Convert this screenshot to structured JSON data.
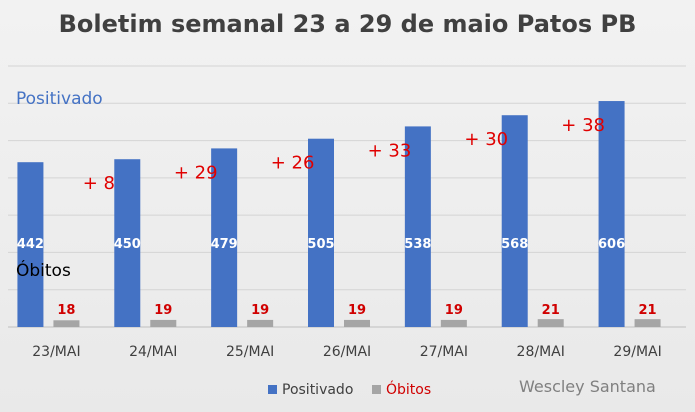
{
  "title": "Boletim semanal 23 a 29 de maio Patos PB",
  "chart_data": {
    "type": "bar",
    "categories": [
      "23/MAI",
      "24/MAI",
      "25/MAI",
      "26/MAI",
      "27/MAI",
      "28/MAI",
      "29/MAI"
    ],
    "series": [
      {
        "name": "Positivado",
        "values": [
          442,
          450,
          479,
          505,
          538,
          568,
          606
        ],
        "color": "#4472C4"
      },
      {
        "name": "Óbitos",
        "values": [
          18,
          19,
          19,
          19,
          19,
          21,
          21
        ],
        "color": "#A5A5A5"
      }
    ],
    "increments": [
      "+ 8",
      "+ 29",
      "+ 26",
      "+ 33",
      "+ 30",
      "+ 38"
    ],
    "ylim": [
      0,
      700
    ],
    "grid": true,
    "legend_position": "bottom",
    "annotations": {
      "series_label_positivado": "Positivado",
      "series_label_obitos": "Óbitos"
    },
    "credit": "Wescley Santana"
  },
  "colors": {
    "positivado": "#4472C4",
    "obitos": "#A5A5A5",
    "increment": "#E00000",
    "obitos_label": "#D00000"
  }
}
